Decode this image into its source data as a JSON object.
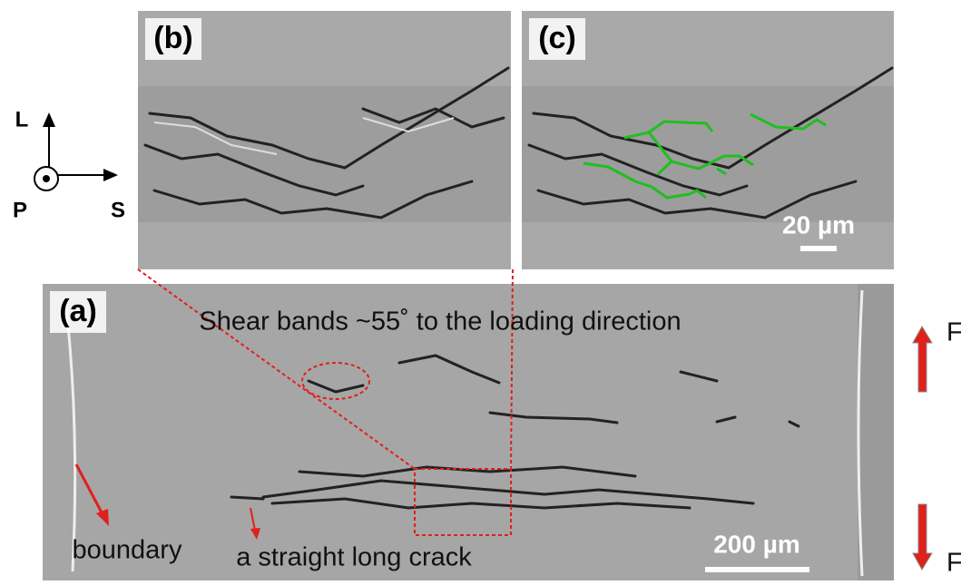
{
  "panels": [
    {
      "label": "(b)"
    },
    {
      "label": "(c)",
      "scale_bar": "20 µm"
    },
    {
      "label": "(a)",
      "caption": "Shear bands ~55˚ to the loading direction",
      "annotations": [
        "boundary",
        "a straight long crack"
      ],
      "scale_bar": "200 µm"
    }
  ],
  "axes": {
    "up": "L",
    "out": "P",
    "right": "S"
  },
  "force_labels": [
    "F",
    "F"
  ]
}
